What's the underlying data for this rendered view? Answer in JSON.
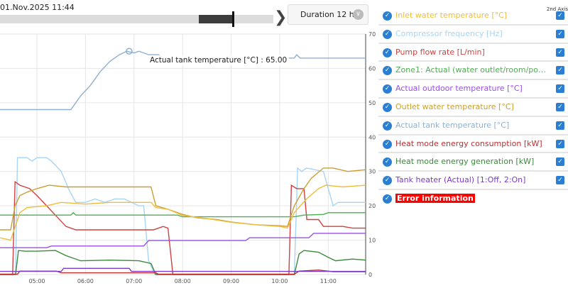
{
  "header": {
    "date": "01.Nov.2025 11:44",
    "duration_label": "Duration 12 h",
    "next_icon": "chevron-right-icon",
    "slider_position": 0.85
  },
  "tooltip": {
    "text": "Actual tank temperature [°C] : 65.00"
  },
  "legend": {
    "axis2_label": "2nd Axis",
    "items": [
      {
        "label": "Inlet water temperature [°C]",
        "color": "#f0bd3c",
        "axis2": true
      },
      {
        "label": "Compressor frequency [Hz]",
        "color": "#a9d4f5",
        "axis2": true
      },
      {
        "label": "Pump flow rate [L/min]",
        "color": "#d04040",
        "axis2": true
      },
      {
        "label": "Zone1: Actual (water outlet/room/pool) tem...",
        "color": "#4caf50",
        "axis2": true
      },
      {
        "label": "Actual outdoor temperature [°C]",
        "color": "#9b4fe8",
        "axis2": true
      },
      {
        "label": "Outlet water temperature [°C]",
        "color": "#c9a030",
        "axis2": true
      },
      {
        "label": "Actual tank temperature [°C]",
        "color": "#8fb0d0",
        "axis2": true
      },
      {
        "label": "Heat mode energy consumption [kW]",
        "color": "#b83030",
        "axis2": true
      },
      {
        "label": "Heat mode energy generation [kW]",
        "color": "#3a8a3a",
        "axis2": true
      },
      {
        "label": "Tank heater (Actual) [1:Off, 2:On]",
        "color": "#7a3cc8",
        "axis2": true
      },
      {
        "label": "Error information",
        "color": "#ff0000",
        "axis2": null
      }
    ]
  },
  "chart_data": {
    "type": "line",
    "xlim": [
      4.24,
      11.77
    ],
    "ylim": [
      0,
      70
    ],
    "x_ticks": [
      {
        "v": 5,
        "label": "05:00"
      },
      {
        "v": 6,
        "label": "06:00"
      },
      {
        "v": 7,
        "label": "07:00"
      },
      {
        "v": 8,
        "label": "08:00"
      },
      {
        "v": 9,
        "label": "09:00"
      },
      {
        "v": 10,
        "label": "10:00"
      },
      {
        "v": 11,
        "label": "11:00"
      }
    ],
    "y_ticks": [
      0,
      10,
      20,
      30,
      40,
      50,
      60,
      70
    ],
    "grid": true,
    "series": [
      {
        "name": "Actual tank temperature [°C]",
        "color": "#8fb0d0",
        "points": [
          [
            4.24,
            48
          ],
          [
            5.7,
            48
          ],
          [
            5.9,
            52
          ],
          [
            6.1,
            55
          ],
          [
            6.3,
            59
          ],
          [
            6.5,
            62
          ],
          [
            6.7,
            64
          ],
          [
            6.85,
            65
          ],
          [
            7.0,
            64.5
          ],
          [
            7.1,
            65
          ],
          [
            7.3,
            64
          ],
          [
            7.5,
            64
          ],
          [
            7.6,
            63
          ],
          [
            10.3,
            63
          ],
          [
            10.35,
            64
          ],
          [
            10.42,
            63
          ],
          [
            11.77,
            63
          ]
        ]
      },
      {
        "name": "Compressor frequency [Hz]",
        "color": "#a9d4f5",
        "points": [
          [
            4.24,
            0
          ],
          [
            4.56,
            0
          ],
          [
            4.6,
            34
          ],
          [
            4.8,
            34
          ],
          [
            4.9,
            33
          ],
          [
            5.0,
            34
          ],
          [
            5.2,
            34
          ],
          [
            5.3,
            33
          ],
          [
            5.5,
            30
          ],
          [
            5.65,
            25
          ],
          [
            5.8,
            21
          ],
          [
            6.0,
            21
          ],
          [
            6.2,
            22
          ],
          [
            6.4,
            21
          ],
          [
            6.6,
            22
          ],
          [
            6.8,
            22
          ],
          [
            6.95,
            21
          ],
          [
            7.1,
            20
          ],
          [
            7.2,
            20
          ],
          [
            7.3,
            4
          ],
          [
            7.43,
            0
          ],
          [
            10.3,
            0
          ],
          [
            10.37,
            31
          ],
          [
            10.45,
            30
          ],
          [
            10.55,
            31
          ],
          [
            10.9,
            30
          ],
          [
            11.1,
            20
          ],
          [
            11.2,
            21
          ],
          [
            11.77,
            21
          ]
        ]
      },
      {
        "name": "Pump flow rate [L/min]",
        "color": "#d04040",
        "points": [
          [
            4.24,
            0
          ],
          [
            4.5,
            0
          ],
          [
            4.55,
            27
          ],
          [
            4.65,
            26
          ],
          [
            4.85,
            25
          ],
          [
            5.0,
            23
          ],
          [
            5.2,
            20
          ],
          [
            5.4,
            17
          ],
          [
            5.6,
            14
          ],
          [
            5.8,
            13
          ],
          [
            6.5,
            13
          ],
          [
            7.4,
            13
          ],
          [
            7.6,
            14
          ],
          [
            7.7,
            13.5
          ],
          [
            7.8,
            0
          ],
          [
            10.19,
            0
          ],
          [
            10.24,
            26
          ],
          [
            10.35,
            25
          ],
          [
            10.5,
            25
          ],
          [
            10.56,
            16
          ],
          [
            10.8,
            16
          ],
          [
            10.9,
            14
          ],
          [
            11.3,
            14
          ],
          [
            11.5,
            13.5
          ],
          [
            11.77,
            13.5
          ]
        ]
      },
      {
        "name": "Zone1: Actual (water outlet/room/pool) tem...",
        "color": "#4caf50",
        "points": [
          [
            4.24,
            17.3
          ],
          [
            5.7,
            17.3
          ],
          [
            5.75,
            18
          ],
          [
            5.8,
            17.3
          ],
          [
            7.9,
            17.3
          ],
          [
            8.0,
            16.8
          ],
          [
            10.3,
            16.8
          ],
          [
            10.5,
            17.3
          ],
          [
            10.9,
            17.5
          ],
          [
            11.0,
            18
          ],
          [
            11.77,
            18
          ]
        ]
      },
      {
        "name": "Actual outdoor temperature [°C]",
        "color": "#9b4fe8",
        "points": [
          [
            4.24,
            7.8
          ],
          [
            5.2,
            7.8
          ],
          [
            5.3,
            8.3
          ],
          [
            7.2,
            8.3
          ],
          [
            7.3,
            9.9
          ],
          [
            9.3,
            9.9
          ],
          [
            9.38,
            10.7
          ],
          [
            10.6,
            10.7
          ],
          [
            10.7,
            12
          ],
          [
            11.77,
            12
          ]
        ]
      },
      {
        "name": "Outlet water temperature [°C]",
        "color": "#c9a030",
        "points": [
          [
            4.24,
            13
          ],
          [
            4.46,
            13
          ],
          [
            4.55,
            20
          ],
          [
            4.65,
            23
          ],
          [
            4.8,
            24
          ],
          [
            5.0,
            25
          ],
          [
            5.25,
            26
          ],
          [
            5.6,
            25.5
          ],
          [
            7.1,
            25.5
          ],
          [
            7.35,
            25.5
          ],
          [
            7.45,
            20
          ],
          [
            7.7,
            19
          ],
          [
            8.0,
            17.5
          ],
          [
            8.3,
            16.5
          ],
          [
            8.7,
            16
          ],
          [
            9.0,
            15.3
          ],
          [
            9.5,
            14.5
          ],
          [
            10.0,
            14.2
          ],
          [
            10.16,
            14
          ],
          [
            10.3,
            20
          ],
          [
            10.5,
            25
          ],
          [
            10.65,
            28
          ],
          [
            10.9,
            31
          ],
          [
            11.1,
            31
          ],
          [
            11.4,
            30
          ],
          [
            11.77,
            30.5
          ]
        ]
      },
      {
        "name": "Inlet water temperature [°C]",
        "color": "#f0bd3c",
        "points": [
          [
            4.24,
            10.7
          ],
          [
            4.46,
            10
          ],
          [
            4.65,
            18
          ],
          [
            4.8,
            19.5
          ],
          [
            5.2,
            20
          ],
          [
            5.5,
            21
          ],
          [
            6.0,
            20.5
          ],
          [
            6.5,
            21
          ],
          [
            7.0,
            21
          ],
          [
            7.35,
            21
          ],
          [
            7.45,
            19.5
          ],
          [
            7.7,
            19
          ],
          [
            8.0,
            17.2
          ],
          [
            8.5,
            16.3
          ],
          [
            9.0,
            15.2
          ],
          [
            9.5,
            14.5
          ],
          [
            10.0,
            14
          ],
          [
            10.16,
            13.5
          ],
          [
            10.3,
            18
          ],
          [
            10.55,
            22
          ],
          [
            10.8,
            25
          ],
          [
            10.95,
            26
          ],
          [
            11.3,
            25.5
          ],
          [
            11.77,
            26
          ]
        ]
      },
      {
        "name": "Heat mode energy generation [kW]",
        "color": "#3a8a3a",
        "points": [
          [
            4.24,
            0
          ],
          [
            4.56,
            0
          ],
          [
            4.62,
            7
          ],
          [
            4.75,
            6.8
          ],
          [
            5.0,
            6.8
          ],
          [
            5.38,
            7
          ],
          [
            5.6,
            5.5
          ],
          [
            5.9,
            4
          ],
          [
            6.5,
            4.2
          ],
          [
            7.1,
            4
          ],
          [
            7.35,
            3.2
          ],
          [
            7.45,
            0
          ],
          [
            10.3,
            0
          ],
          [
            10.4,
            6
          ],
          [
            10.5,
            7
          ],
          [
            10.8,
            6.5
          ],
          [
            11.0,
            5
          ],
          [
            11.15,
            4
          ],
          [
            11.5,
            4.5
          ],
          [
            11.77,
            4.2
          ]
        ]
      },
      {
        "name": "Heat mode energy consumption [kW]",
        "color": "#b83030",
        "points": [
          [
            4.24,
            0.1
          ],
          [
            4.6,
            0.1
          ],
          [
            4.65,
            1
          ],
          [
            5.4,
            1
          ],
          [
            5.5,
            0.5
          ],
          [
            7.45,
            0.5
          ],
          [
            7.5,
            0.1
          ],
          [
            10.3,
            0.1
          ],
          [
            10.4,
            1
          ],
          [
            10.8,
            1.3
          ],
          [
            11.1,
            0.8
          ],
          [
            11.77,
            0.8
          ]
        ]
      },
      {
        "name": "Tank heater (Actual) [1:Off, 2:On]",
        "color": "#7a3cc8",
        "points": [
          [
            4.24,
            0.9
          ],
          [
            5.5,
            0.9
          ],
          [
            5.55,
            1.8
          ],
          [
            6.9,
            1.8
          ],
          [
            6.95,
            0.9
          ],
          [
            11.77,
            0.9
          ]
        ]
      }
    ],
    "highlight": {
      "series": "Actual tank temperature [°C]",
      "x": 6.9,
      "y": 65
    }
  }
}
